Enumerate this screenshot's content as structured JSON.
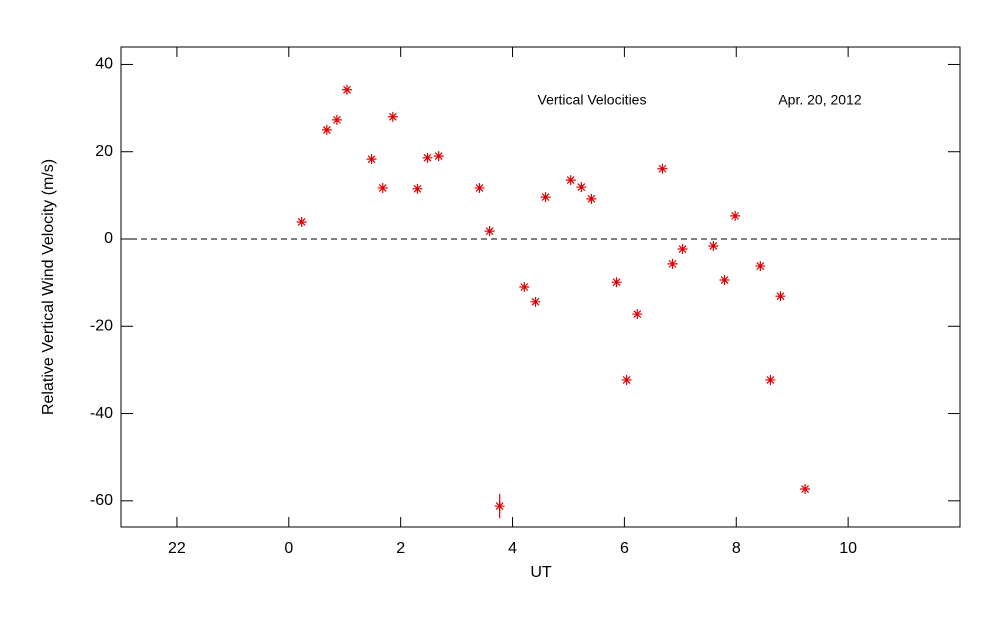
{
  "chart_data": {
    "type": "scatter",
    "annotations": [
      "Vertical Velocities",
      "Apr. 20, 2012"
    ],
    "xlabel": "UT",
    "ylabel": "Relative Vertical Wind Velocity (m/s)",
    "xlim": [
      -3,
      12
    ],
    "xticks": [
      {
        "value": -2,
        "label": "22"
      },
      0,
      2,
      4,
      6,
      8,
      10
    ],
    "ylim": [
      -66,
      44
    ],
    "yticks": [
      -60,
      -40,
      -20,
      0,
      20,
      40
    ],
    "reference_line": 0,
    "color": "#e00000",
    "x": [
      0.23,
      0.68,
      0.86,
      1.04,
      1.48,
      1.68,
      1.86,
      2.3,
      2.48,
      2.68,
      3.41,
      3.59,
      3.77,
      4.21,
      4.41,
      4.59,
      5.04,
      5.23,
      5.41,
      5.86,
      6.04,
      6.23,
      6.68,
      6.86,
      7.04,
      7.59,
      7.79,
      7.98,
      8.43,
      8.61,
      8.79,
      9.23
    ],
    "values": [
      3.9,
      25,
      27.3,
      34.2,
      18.3,
      11.7,
      28,
      11.5,
      18.6,
      19,
      11.7,
      1.8,
      -61.2,
      -11,
      -14.4,
      9.6,
      13.5,
      11.9,
      9.2,
      -9.9,
      -32.3,
      -17.2,
      16.1,
      -5.7,
      -2.3,
      -1.6,
      -9.4,
      5.3,
      -6.2,
      -32.3,
      -13.1,
      -57.3
    ],
    "errors": [
      null,
      null,
      null,
      null,
      null,
      null,
      null,
      null,
      null,
      null,
      null,
      null,
      2.8,
      null,
      null,
      null,
      null,
      null,
      null,
      null,
      null,
      null,
      null,
      null,
      null,
      null,
      null,
      null,
      null,
      null,
      null,
      null
    ]
  }
}
